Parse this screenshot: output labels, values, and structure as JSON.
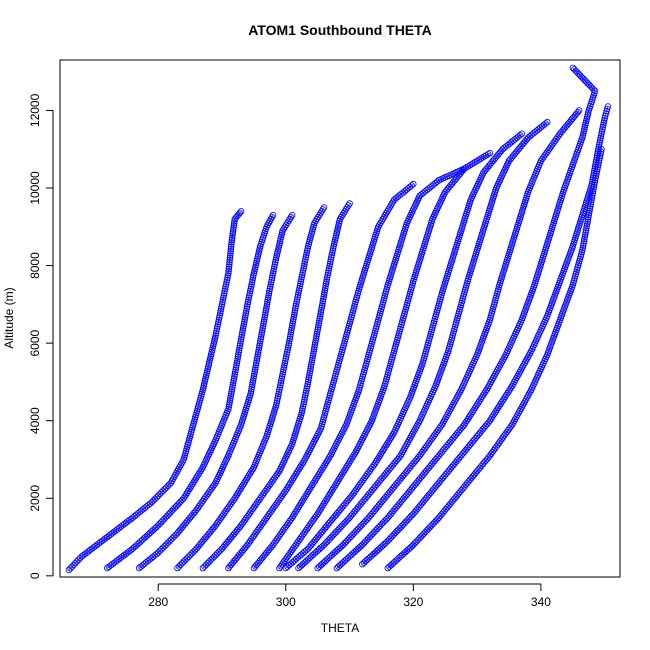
{
  "chart_data": {
    "type": "scatter",
    "title": "ATOM1 Southbound THETA",
    "xlabel": "THETA",
    "ylabel": "Altitude (m)",
    "xlim": [
      264.6,
      352.4
    ],
    "ylim": [
      -30,
      13300
    ],
    "x_ticks": [
      280,
      300,
      320,
      340
    ],
    "y_ticks": [
      0,
      2000,
      4000,
      6000,
      8000,
      10000,
      12000
    ],
    "marker": "open-circle",
    "color": "#0000ff",
    "grid": false,
    "legend": "none",
    "series": [
      {
        "profiles": [
          [
            [
              266,
              150
            ],
            [
              268,
              500
            ],
            [
              272,
              1000
            ],
            [
              276,
              1500
            ],
            [
              279,
              1900
            ],
            [
              282,
              2400
            ],
            [
              284,
              3000
            ],
            [
              285,
              3600
            ],
            [
              286,
              4200
            ],
            [
              287,
              4800
            ],
            [
              288,
              5500
            ],
            [
              289,
              6200
            ],
            [
              290,
              7000
            ],
            [
              291,
              7800
            ],
            [
              291.5,
              8600
            ],
            [
              292,
              9200
            ],
            [
              293,
              9400
            ]
          ],
          [
            [
              272,
              200
            ],
            [
              276,
              700
            ],
            [
              280,
              1300
            ],
            [
              284,
              2000
            ],
            [
              287,
              2800
            ],
            [
              289,
              3500
            ],
            [
              291,
              4300
            ],
            [
              292,
              5200
            ],
            [
              293,
              6100
            ],
            [
              294,
              7000
            ],
            [
              295,
              7800
            ],
            [
              296,
              8500
            ],
            [
              297,
              9000
            ],
            [
              298,
              9300
            ]
          ],
          [
            [
              277,
              200
            ],
            [
              280,
              600
            ],
            [
              283,
              1100
            ],
            [
              286,
              1700
            ],
            [
              289,
              2400
            ],
            [
              291,
              3100
            ],
            [
              293,
              3900
            ],
            [
              294.5,
              4700
            ],
            [
              295.5,
              5600
            ],
            [
              296.5,
              6500
            ],
            [
              297.5,
              7400
            ],
            [
              298.5,
              8200
            ],
            [
              299.5,
              8900
            ],
            [
              301,
              9300
            ]
          ],
          [
            [
              283,
              200
            ],
            [
              286,
              700
            ],
            [
              289,
              1300
            ],
            [
              292,
              2000
            ],
            [
              295,
              2800
            ],
            [
              297,
              3600
            ],
            [
              298.5,
              4400
            ],
            [
              299.5,
              5200
            ],
            [
              300.5,
              6000
            ],
            [
              301.5,
              6900
            ],
            [
              302.5,
              7700
            ],
            [
              303.5,
              8500
            ],
            [
              304.5,
              9100
            ],
            [
              306,
              9500
            ]
          ],
          [
            [
              287,
              200
            ],
            [
              290,
              700
            ],
            [
              293,
              1300
            ],
            [
              296,
              2000
            ],
            [
              299,
              2700
            ],
            [
              301,
              3400
            ],
            [
              302.5,
              4200
            ],
            [
              303.5,
              5000
            ],
            [
              304.5,
              5900
            ],
            [
              305.5,
              6800
            ],
            [
              306.5,
              7700
            ],
            [
              307.5,
              8500
            ],
            [
              308.5,
              9200
            ],
            [
              310,
              9600
            ]
          ],
          [
            [
              291,
              200
            ],
            [
              294,
              800
            ],
            [
              297,
              1500
            ],
            [
              300,
              2200
            ],
            [
              303,
              3000
            ],
            [
              305.5,
              3800
            ],
            [
              307,
              4700
            ],
            [
              308.5,
              5600
            ],
            [
              310,
              6500
            ],
            [
              311.5,
              7400
            ],
            [
              313,
              8200
            ],
            [
              314.5,
              9000
            ],
            [
              317,
              9700
            ],
            [
              320,
              10100
            ]
          ],
          [
            [
              295,
              200
            ],
            [
              298,
              800
            ],
            [
              301,
              1500
            ],
            [
              304,
              2300
            ],
            [
              307,
              3100
            ],
            [
              309.5,
              3900
            ],
            [
              311.5,
              4800
            ],
            [
              313,
              5700
            ],
            [
              314.5,
              6600
            ],
            [
              316,
              7500
            ],
            [
              317.5,
              8300
            ],
            [
              319,
              9100
            ],
            [
              321,
              9800
            ],
            [
              324,
              10200
            ],
            [
              328,
              10500
            ]
          ],
          [
            [
              299,
              200
            ],
            [
              302,
              900
            ],
            [
              305,
              1600
            ],
            [
              308,
              2400
            ],
            [
              311,
              3200
            ],
            [
              313.5,
              4000
            ],
            [
              315.5,
              4900
            ],
            [
              317,
              5800
            ],
            [
              318.5,
              6700
            ],
            [
              320,
              7600
            ],
            [
              321.5,
              8400
            ],
            [
              323,
              9200
            ],
            [
              325,
              9900
            ],
            [
              328,
              10500
            ],
            [
              332,
              10900
            ]
          ],
          [
            [
              300,
              200
            ],
            [
              303.5,
              700
            ],
            [
              307,
              1400
            ],
            [
              310.5,
              2100
            ],
            [
              314,
              2900
            ],
            [
              317,
              3700
            ],
            [
              319.5,
              4600
            ],
            [
              321.5,
              5500
            ],
            [
              323,
              6400
            ],
            [
              324.5,
              7300
            ],
            [
              326,
              8100
            ],
            [
              327.5,
              8900
            ],
            [
              329,
              9700
            ],
            [
              331,
              10400
            ],
            [
              334,
              11000
            ],
            [
              337,
              11400
            ]
          ],
          [
            [
              302,
              200
            ],
            [
              306,
              800
            ],
            [
              310,
              1500
            ],
            [
              314,
              2300
            ],
            [
              318,
              3100
            ],
            [
              321,
              4000
            ],
            [
              323.5,
              4900
            ],
            [
              325.5,
              5800
            ],
            [
              327,
              6700
            ],
            [
              328.5,
              7600
            ],
            [
              330,
              8400
            ],
            [
              331.5,
              9200
            ],
            [
              333,
              10000
            ],
            [
              335,
              10700
            ],
            [
              338,
              11300
            ],
            [
              341,
              11700
            ]
          ],
          [
            [
              305,
              200
            ],
            [
              309,
              800
            ],
            [
              313,
              1500
            ],
            [
              317,
              2300
            ],
            [
              321,
              3100
            ],
            [
              324.5,
              3900
            ],
            [
              327.5,
              4800
            ],
            [
              330,
              5700
            ],
            [
              332,
              6600
            ],
            [
              333.5,
              7500
            ],
            [
              335,
              8300
            ],
            [
              336.5,
              9100
            ],
            [
              338,
              9900
            ],
            [
              340,
              10700
            ],
            [
              343,
              11400
            ],
            [
              346,
              12000
            ]
          ],
          [
            [
              308,
              200
            ],
            [
              312,
              800
            ],
            [
              316,
              1500
            ],
            [
              320,
              2300
            ],
            [
              324,
              3100
            ],
            [
              328,
              3900
            ],
            [
              331.5,
              4800
            ],
            [
              334.5,
              5700
            ],
            [
              337,
              6600
            ],
            [
              339,
              7500
            ],
            [
              340.5,
              8300
            ],
            [
              342,
              9100
            ],
            [
              343.5,
              9900
            ],
            [
              345,
              10600
            ],
            [
              346.5,
              11300
            ],
            [
              347.5,
              12000
            ],
            [
              348.5,
              12500
            ],
            [
              345,
              13100
            ]
          ],
          [
            [
              312,
              300
            ],
            [
              316,
              900
            ],
            [
              320,
              1600
            ],
            [
              324,
              2400
            ],
            [
              328,
              3200
            ],
            [
              332,
              4000
            ],
            [
              335.5,
              4900
            ],
            [
              338.5,
              5800
            ],
            [
              341,
              6700
            ],
            [
              343,
              7600
            ],
            [
              345,
              8500
            ],
            [
              346.5,
              9300
            ],
            [
              348,
              10100
            ],
            [
              349,
              11000
            ],
            [
              350,
              11800
            ],
            [
              350.5,
              12100
            ]
          ],
          [
            [
              316,
              200
            ],
            [
              320,
              800
            ],
            [
              324,
              1500
            ],
            [
              328,
              2300
            ],
            [
              332,
              3100
            ],
            [
              335.5,
              3900
            ],
            [
              338.5,
              4800
            ],
            [
              341,
              5700
            ],
            [
              343,
              6600
            ],
            [
              345,
              7500
            ],
            [
              346.5,
              8400
            ],
            [
              347.5,
              9300
            ],
            [
              348.5,
              10200
            ],
            [
              349.5,
              11000
            ]
          ]
        ]
      }
    ]
  }
}
